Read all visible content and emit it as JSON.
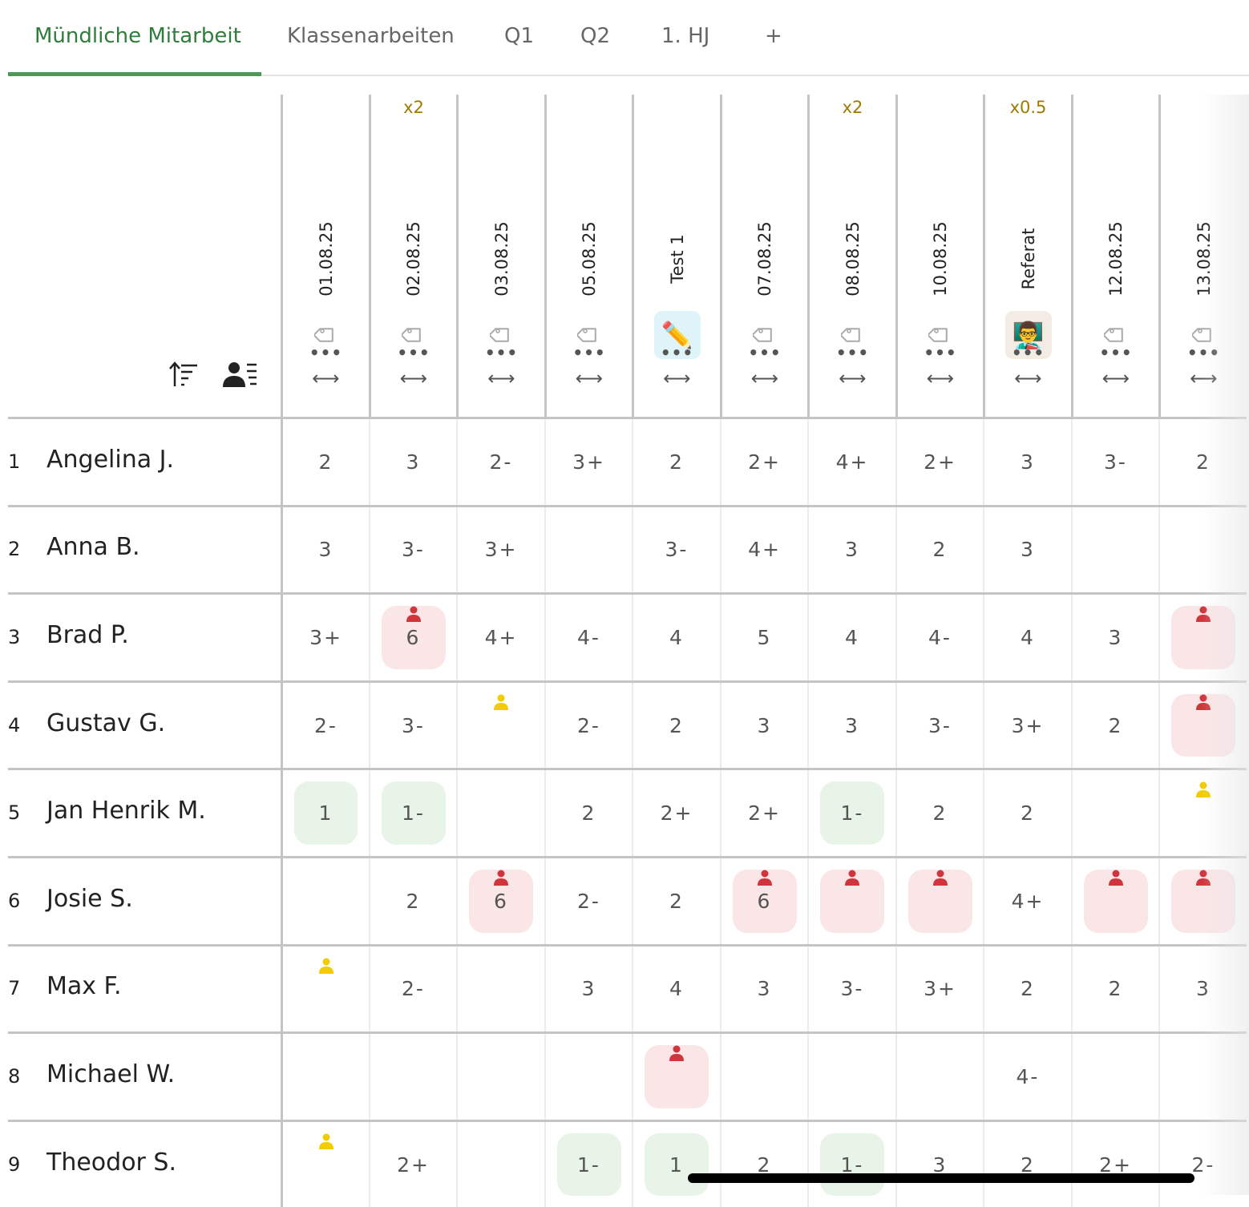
{
  "tabs": [
    {
      "label": "Mündliche Mitarbeit",
      "active": true
    },
    {
      "label": "Klassenarbeiten"
    },
    {
      "label": "Q1"
    },
    {
      "label": "Q2"
    },
    {
      "label": "1. HJ"
    },
    {
      "label": "+"
    }
  ],
  "colors": {
    "accent": "#2f7d3c",
    "red_mark": "#d0343c",
    "yellow_mark": "#f2cc00",
    "red_bg": "#fbe6e7",
    "green_bg": "#e8f4e8",
    "weight": "#a07a00"
  },
  "header_icons": [
    "sort-ascending-icon",
    "student-list-icon"
  ],
  "columns": [
    {
      "title": "01.08.25",
      "weight": "",
      "icon": "tag"
    },
    {
      "title": "02.08.25",
      "weight": "x2",
      "icon": "tag"
    },
    {
      "title": "03.08.25",
      "weight": "",
      "icon": "tag"
    },
    {
      "title": "05.08.25",
      "weight": "",
      "icon": "tag"
    },
    {
      "title": "Test 1",
      "weight": "",
      "icon": "✏️",
      "icon_bg": "#dff4f8"
    },
    {
      "title": "07.08.25",
      "weight": "",
      "icon": "tag"
    },
    {
      "title": "08.08.25",
      "weight": "x2",
      "icon": "tag"
    },
    {
      "title": "10.08.25",
      "weight": "",
      "icon": "tag"
    },
    {
      "title": "Referat",
      "weight": "x0.5",
      "icon": "👨‍🏫",
      "icon_bg": "#f3ece4"
    },
    {
      "title": "12.08.25",
      "weight": "",
      "icon": "tag"
    },
    {
      "title": "13.08.25",
      "weight": "",
      "icon": "tag"
    }
  ],
  "students": [
    {
      "num": "1",
      "name": "Angelina J.",
      "grades": [
        "2",
        "3",
        "2-",
        "3+",
        "2",
        "2+",
        "4+",
        "2+",
        "3",
        "3-",
        "2"
      ]
    },
    {
      "num": "2",
      "name": "Anna B.",
      "grades": [
        "3",
        "3-",
        "3+",
        "",
        "3-",
        "4+",
        "3",
        "2",
        "3",
        "",
        ""
      ]
    },
    {
      "num": "3",
      "name": "Brad P.",
      "grades": [
        "3+",
        {
          "g": "6",
          "mark": "red",
          "bg": "red"
        },
        "4+",
        "4-",
        "4",
        "5",
        "4",
        "4-",
        "4",
        "3",
        {
          "g": "",
          "mark": "red",
          "bg": "red"
        }
      ]
    },
    {
      "num": "4",
      "name": "Gustav G.",
      "grades": [
        "2-",
        "3-",
        {
          "g": "",
          "mark": "yellow"
        },
        "2-",
        "2",
        "3",
        "3",
        "3-",
        "3+",
        "2",
        {
          "g": "",
          "mark": "red",
          "bg": "red"
        }
      ]
    },
    {
      "num": "5",
      "name": "Jan Henrik M.",
      "grades": [
        {
          "g": "1",
          "bg": "green"
        },
        {
          "g": "1-",
          "bg": "green"
        },
        "",
        "2",
        "2+",
        "2+",
        {
          "g": "1-",
          "bg": "green"
        },
        "2",
        "2",
        "",
        {
          "g": "",
          "mark": "yellow"
        }
      ]
    },
    {
      "num": "6",
      "name": "Josie S.",
      "grades": [
        "",
        "2",
        {
          "g": "6",
          "mark": "red",
          "bg": "red"
        },
        "2-",
        "2",
        {
          "g": "6",
          "mark": "red",
          "bg": "red"
        },
        {
          "g": "",
          "mark": "red",
          "bg": "red"
        },
        {
          "g": "",
          "mark": "red",
          "bg": "red"
        },
        "4+",
        {
          "g": "",
          "mark": "red",
          "bg": "red"
        },
        {
          "g": "",
          "mark": "red",
          "bg": "red"
        }
      ]
    },
    {
      "num": "7",
      "name": "Max F.",
      "grades": [
        {
          "g": "",
          "mark": "yellow"
        },
        "2-",
        "",
        "3",
        "4",
        "3",
        "3-",
        "3+",
        "2",
        "2",
        "3"
      ]
    },
    {
      "num": "8",
      "name": "Michael W.",
      "grades": [
        "",
        "",
        "",
        "",
        {
          "g": "",
          "mark": "red",
          "bg": "red"
        },
        "",
        "",
        "",
        "4-",
        "",
        ""
      ]
    },
    {
      "num": "9",
      "name": "Theodor S.",
      "grades": [
        {
          "g": "",
          "mark": "yellow"
        },
        "2+",
        "",
        {
          "g": "1-",
          "bg": "green"
        },
        {
          "g": "1",
          "bg": "green"
        },
        "2",
        {
          "g": "1-",
          "bg": "green"
        },
        "3",
        "2",
        "2+",
        "2-"
      ]
    }
  ]
}
